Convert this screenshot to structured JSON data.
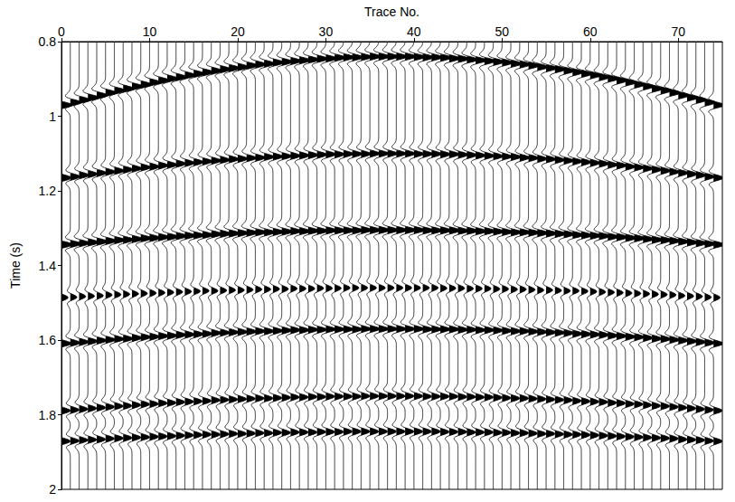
{
  "chart_data": {
    "type": "wiggle",
    "x_label": "Trace No.",
    "y_label": "Time (s)",
    "color": "#000000",
    "xlim": [
      0,
      75
    ],
    "xticks": [
      0,
      10,
      20,
      30,
      40,
      50,
      60,
      70
    ],
    "ylim": [
      0.8,
      2
    ],
    "yticks": [
      0.8,
      1,
      1.2,
      1.4,
      1.6,
      1.8,
      2
    ],
    "x": [
      0,
      1,
      2,
      3,
      4,
      5,
      6,
      7,
      8,
      9,
      10,
      11,
      12,
      13,
      14,
      15,
      16,
      17,
      18,
      19,
      20,
      21,
      22,
      23,
      24,
      25,
      26,
      27,
      28,
      29,
      30,
      31,
      32,
      33,
      34,
      35,
      36,
      37,
      38,
      39,
      40,
      41,
      42,
      43,
      44,
      45,
      46,
      47,
      48,
      49,
      50,
      51,
      52,
      53,
      54,
      55,
      56,
      57,
      58,
      59,
      60,
      61,
      62,
      63,
      64,
      65,
      66,
      67,
      68,
      69,
      70,
      71,
      72,
      73,
      74
    ],
    "events": [
      {
        "amplitude": 1.0,
        "times": [
          0.97,
          0.963,
          0.956,
          0.95,
          0.944,
          0.937,
          0.931,
          0.926,
          0.92,
          0.915,
          0.909,
          0.904,
          0.899,
          0.895,
          0.89,
          0.886,
          0.882,
          0.878,
          0.874,
          0.871,
          0.868,
          0.864,
          0.861,
          0.859,
          0.856,
          0.854,
          0.852,
          0.85,
          0.848,
          0.846,
          0.845,
          0.843,
          0.842,
          0.842,
          0.841,
          0.84,
          0.84,
          0.84,
          0.84,
          0.84,
          0.841,
          0.842,
          0.842,
          0.843,
          0.845,
          0.846,
          0.848,
          0.85,
          0.852,
          0.854,
          0.856,
          0.859,
          0.861,
          0.864,
          0.868,
          0.871,
          0.874,
          0.878,
          0.882,
          0.886,
          0.89,
          0.895,
          0.899,
          0.904,
          0.909,
          0.915,
          0.92,
          0.926,
          0.931,
          0.937,
          0.944,
          0.95,
          0.956,
          0.963,
          0.97
        ]
      },
      {
        "amplitude": 0.9,
        "times": [
          1.165,
          1.162,
          1.158,
          1.155,
          1.152,
          1.149,
          1.146,
          1.143,
          1.14,
          1.137,
          1.135,
          1.132,
          1.13,
          1.127,
          1.125,
          1.123,
          1.121,
          1.119,
          1.117,
          1.115,
          1.114,
          1.112,
          1.111,
          1.109,
          1.108,
          1.107,
          1.106,
          1.105,
          1.104,
          1.103,
          1.102,
          1.102,
          1.101,
          1.101,
          1.101,
          1.1,
          1.1,
          1.1,
          1.1,
          1.1,
          1.101,
          1.101,
          1.101,
          1.102,
          1.102,
          1.103,
          1.104,
          1.105,
          1.106,
          1.107,
          1.108,
          1.109,
          1.111,
          1.112,
          1.114,
          1.115,
          1.117,
          1.119,
          1.121,
          1.123,
          1.125,
          1.127,
          1.13,
          1.132,
          1.135,
          1.137,
          1.14,
          1.143,
          1.146,
          1.149,
          1.152,
          1.155,
          1.158,
          1.162,
          1.165
        ]
      },
      {
        "amplitude": 1.0,
        "times": [
          1.344,
          1.342,
          1.34,
          1.338,
          1.336,
          1.334,
          1.332,
          1.331,
          1.329,
          1.327,
          1.326,
          1.324,
          1.323,
          1.321,
          1.32,
          1.319,
          1.318,
          1.316,
          1.315,
          1.314,
          1.313,
          1.312,
          1.311,
          1.311,
          1.31,
          1.309,
          1.308,
          1.308,
          1.307,
          1.307,
          1.306,
          1.306,
          1.306,
          1.306,
          1.305,
          1.305,
          1.305,
          1.305,
          1.305,
          1.305,
          1.305,
          1.306,
          1.306,
          1.306,
          1.306,
          1.307,
          1.307,
          1.308,
          1.308,
          1.309,
          1.31,
          1.311,
          1.311,
          1.312,
          1.313,
          1.314,
          1.315,
          1.316,
          1.318,
          1.319,
          1.32,
          1.321,
          1.323,
          1.324,
          1.326,
          1.327,
          1.329,
          1.331,
          1.332,
          1.334,
          1.336,
          1.338,
          1.34,
          1.342,
          1.344
        ]
      },
      {
        "amplitude": 0.6,
        "times": [
          1.486,
          1.485,
          1.483,
          1.482,
          1.481,
          1.479,
          1.478,
          1.477,
          1.476,
          1.475,
          1.474,
          1.473,
          1.472,
          1.471,
          1.47,
          1.469,
          1.468,
          1.468,
          1.467,
          1.466,
          1.466,
          1.465,
          1.464,
          1.464,
          1.463,
          1.463,
          1.462,
          1.462,
          1.462,
          1.461,
          1.461,
          1.461,
          1.46,
          1.46,
          1.46,
          1.46,
          1.46,
          1.46,
          1.46,
          1.46,
          1.46,
          1.46,
          1.46,
          1.461,
          1.461,
          1.461,
          1.462,
          1.462,
          1.462,
          1.463,
          1.463,
          1.464,
          1.464,
          1.465,
          1.466,
          1.466,
          1.467,
          1.468,
          1.468,
          1.469,
          1.47,
          1.471,
          1.472,
          1.473,
          1.474,
          1.475,
          1.476,
          1.477,
          1.478,
          1.479,
          1.481,
          1.482,
          1.483,
          1.485,
          1.486
        ]
      },
      {
        "amplitude": 0.9,
        "times": [
          1.609,
          1.607,
          1.605,
          1.603,
          1.601,
          1.599,
          1.597,
          1.596,
          1.594,
          1.592,
          1.591,
          1.589,
          1.588,
          1.586,
          1.585,
          1.584,
          1.583,
          1.581,
          1.58,
          1.579,
          1.578,
          1.577,
          1.576,
          1.576,
          1.575,
          1.574,
          1.573,
          1.573,
          1.572,
          1.572,
          1.571,
          1.571,
          1.571,
          1.571,
          1.57,
          1.57,
          1.57,
          1.57,
          1.57,
          1.57,
          1.57,
          1.571,
          1.571,
          1.571,
          1.571,
          1.572,
          1.572,
          1.573,
          1.573,
          1.574,
          1.575,
          1.576,
          1.576,
          1.577,
          1.578,
          1.579,
          1.58,
          1.581,
          1.583,
          1.584,
          1.585,
          1.586,
          1.588,
          1.589,
          1.591,
          1.592,
          1.594,
          1.596,
          1.597,
          1.599,
          1.601,
          1.603,
          1.605,
          1.607,
          1.609
        ]
      },
      {
        "amplitude": 0.8,
        "times": [
          1.789,
          1.787,
          1.785,
          1.783,
          1.781,
          1.779,
          1.777,
          1.776,
          1.774,
          1.772,
          1.771,
          1.769,
          1.768,
          1.766,
          1.765,
          1.764,
          1.763,
          1.761,
          1.76,
          1.759,
          1.758,
          1.757,
          1.756,
          1.756,
          1.755,
          1.754,
          1.753,
          1.753,
          1.752,
          1.752,
          1.751,
          1.751,
          1.751,
          1.751,
          1.75,
          1.75,
          1.75,
          1.75,
          1.75,
          1.75,
          1.75,
          1.751,
          1.751,
          1.751,
          1.751,
          1.752,
          1.752,
          1.753,
          1.753,
          1.754,
          1.755,
          1.756,
          1.756,
          1.757,
          1.758,
          1.759,
          1.76,
          1.761,
          1.763,
          1.764,
          1.765,
          1.766,
          1.768,
          1.769,
          1.771,
          1.772,
          1.774,
          1.776,
          1.777,
          1.779,
          1.781,
          1.783,
          1.785,
          1.787,
          1.789
        ]
      },
      {
        "amplitude": 0.8,
        "times": [
          1.871,
          1.87,
          1.868,
          1.867,
          1.866,
          1.864,
          1.863,
          1.862,
          1.861,
          1.86,
          1.859,
          1.858,
          1.857,
          1.856,
          1.855,
          1.854,
          1.853,
          1.853,
          1.852,
          1.851,
          1.851,
          1.85,
          1.849,
          1.849,
          1.848,
          1.848,
          1.847,
          1.847,
          1.847,
          1.846,
          1.846,
          1.846,
          1.845,
          1.845,
          1.845,
          1.845,
          1.845,
          1.845,
          1.845,
          1.845,
          1.845,
          1.845,
          1.845,
          1.846,
          1.846,
          1.846,
          1.847,
          1.847,
          1.847,
          1.848,
          1.848,
          1.849,
          1.849,
          1.85,
          1.851,
          1.851,
          1.852,
          1.853,
          1.853,
          1.854,
          1.855,
          1.856,
          1.857,
          1.858,
          1.859,
          1.86,
          1.861,
          1.862,
          1.863,
          1.864,
          1.866,
          1.867,
          1.868,
          1.87,
          1.871
        ]
      }
    ]
  }
}
